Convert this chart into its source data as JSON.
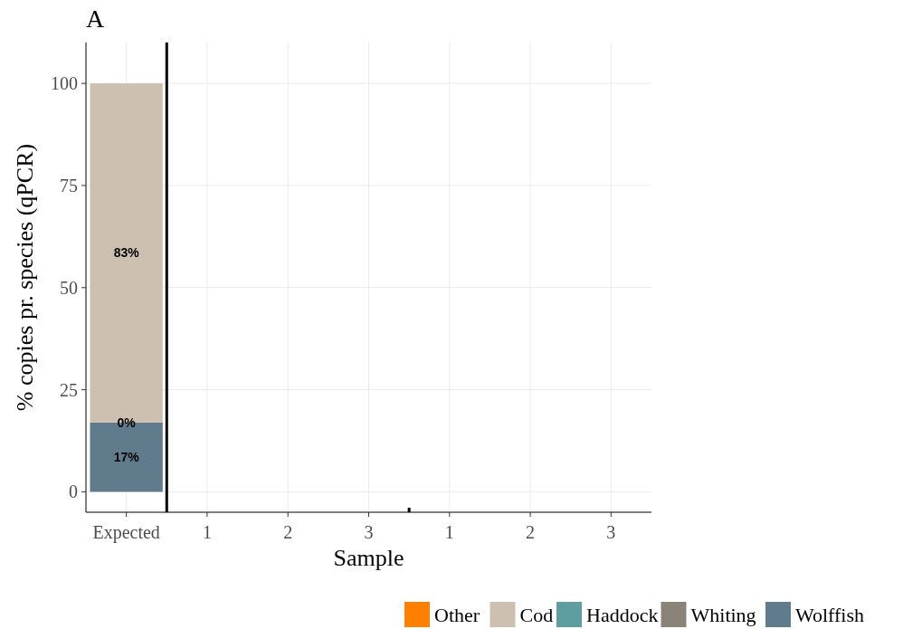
{
  "chart_data": {
    "type": "bar",
    "title": "A",
    "xlabel": "Sample",
    "ylabel": "% copies pr. species (qPCR)",
    "categories": [
      "Expected",
      "1",
      "2",
      "3",
      "1",
      "2",
      "3"
    ],
    "stacked": true,
    "series": [
      {
        "name": "Wolffish",
        "color": "#607b8b",
        "values": [
          17,
          null,
          null,
          null,
          null,
          null,
          null
        ],
        "value_labels": [
          "17%",
          null,
          null,
          null,
          null,
          null,
          null
        ]
      },
      {
        "name": "Whiting",
        "color": "#8b8378",
        "values": [
          0,
          null,
          null,
          null,
          null,
          null,
          null
        ]
      },
      {
        "name": "Haddock",
        "color": "#5f9ea0",
        "values": [
          null,
          null,
          null,
          null,
          null,
          null,
          null
        ]
      },
      {
        "name": "Cod",
        "color": "#cdc0b0",
        "values": [
          83,
          null,
          null,
          null,
          null,
          null,
          null
        ],
        "value_labels": [
          "83%",
          null,
          null,
          null,
          null,
          null,
          null
        ]
      },
      {
        "name": "Other",
        "color": "#ff7f00",
        "values": [
          null,
          null,
          null,
          null,
          null,
          null,
          null
        ]
      }
    ],
    "ylim": [
      -5,
      110
    ],
    "yticks": [
      0,
      25,
      50,
      75,
      100
    ],
    "grid": true,
    "legend": "bottom right",
    "annotations": [
      {
        "text": "0%",
        "x": "Expected",
        "y": 17
      }
    ]
  }
}
